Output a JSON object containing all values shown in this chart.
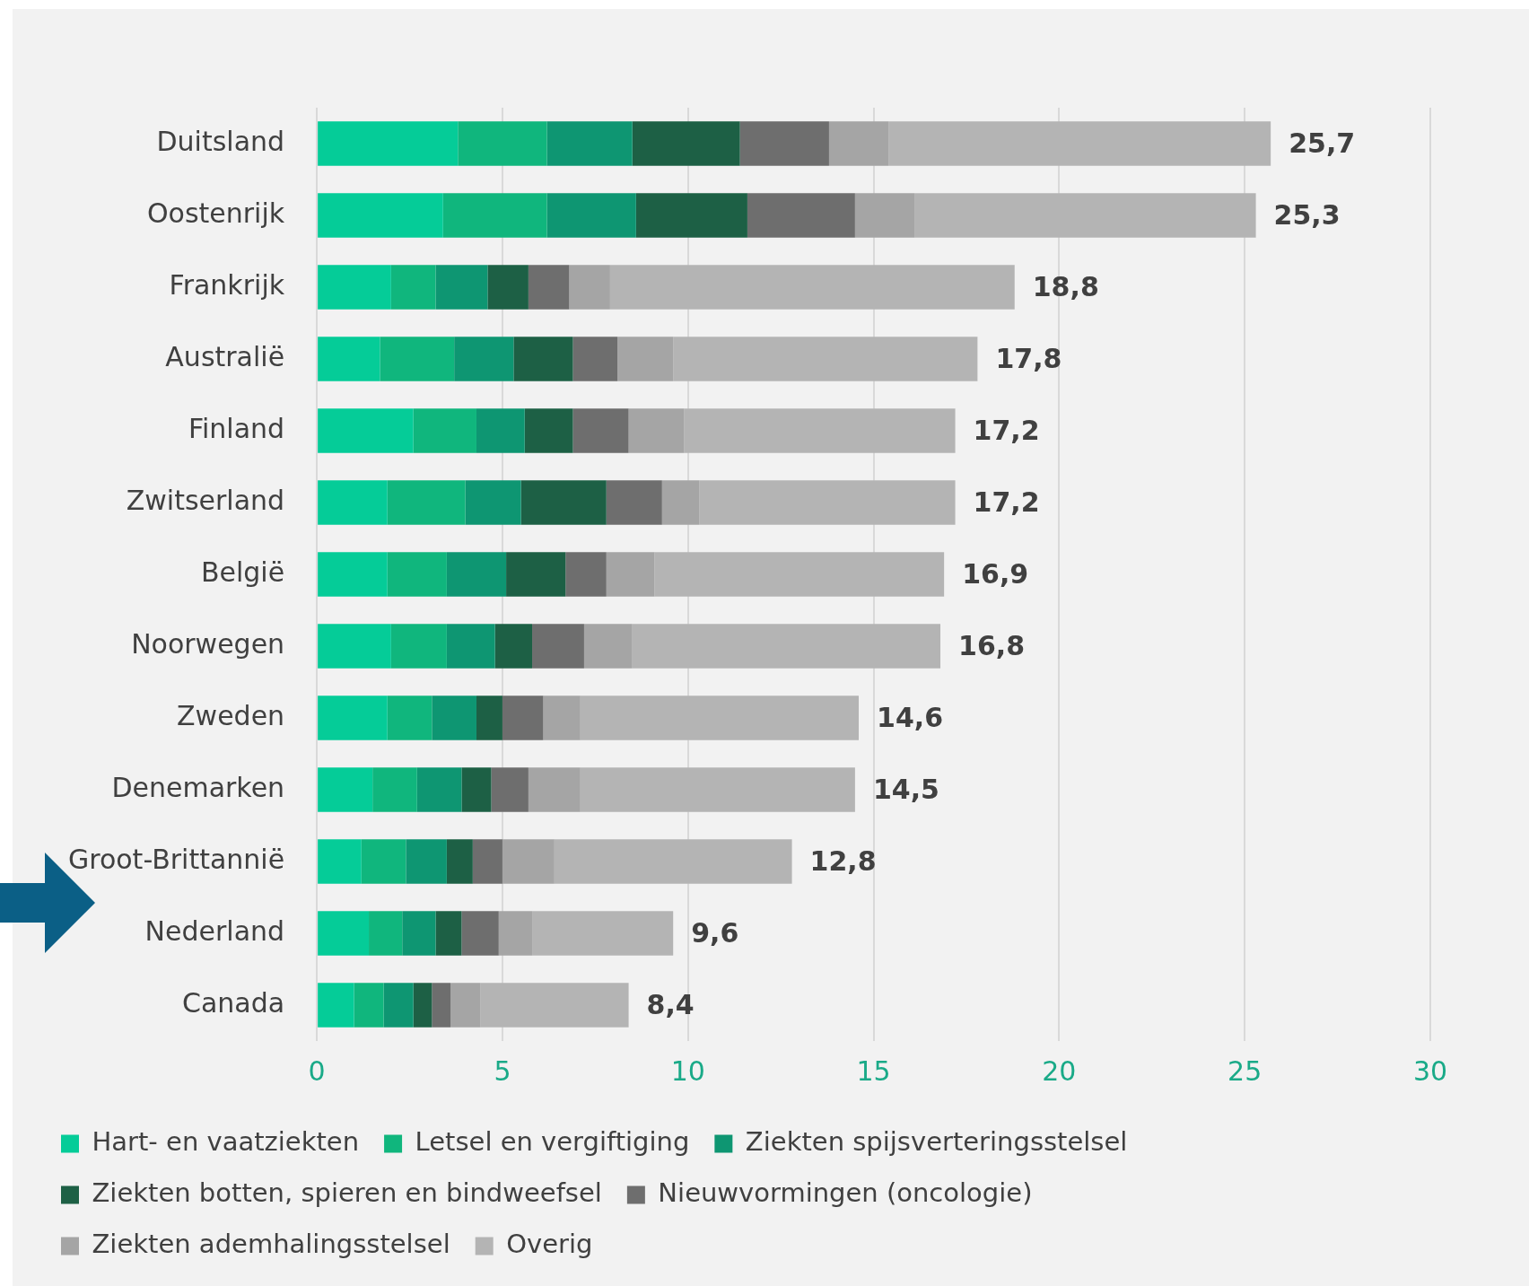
{
  "chart_data": {
    "type": "bar",
    "orientation": "horizontal",
    "stacked": true,
    "categories": [
      "Duitsland",
      "Oostenrijk",
      "Frankrijk",
      "Australië",
      "Finland",
      "Zwitserland",
      "België",
      "Noorwegen",
      "Zweden",
      "Denemarken",
      "Groot-Brittannië",
      "Nederland",
      "Canada"
    ],
    "series": [
      {
        "name": "Hart- en vaatziekten",
        "color": "#05cc98",
        "values": [
          3.8,
          3.4,
          2.0,
          1.7,
          2.6,
          1.9,
          1.9,
          2.0,
          1.9,
          1.5,
          1.2,
          1.4,
          1.0
        ]
      },
      {
        "name": "Letsel en vergiftiging",
        "color": "#10b67d",
        "values": [
          2.4,
          2.8,
          1.2,
          2.0,
          1.7,
          2.1,
          1.6,
          1.5,
          1.2,
          1.2,
          1.2,
          0.9,
          0.8
        ]
      },
      {
        "name": "Ziekten spijsverteringsstelsel",
        "color": "#0e9672",
        "values": [
          2.3,
          2.4,
          1.4,
          1.6,
          1.3,
          1.5,
          1.6,
          1.3,
          1.2,
          1.2,
          1.1,
          0.9,
          0.8
        ]
      },
      {
        "name": "Ziekten botten, spieren en bindweefsel",
        "color": "#1d6045",
        "values": [
          2.9,
          3.0,
          1.1,
          1.6,
          1.3,
          2.3,
          1.6,
          1.0,
          0.7,
          0.8,
          0.7,
          0.7,
          0.5
        ]
      },
      {
        "name": "Nieuwvormingen (oncologie)",
        "color": "#6e6e6e",
        "values": [
          2.4,
          2.9,
          1.1,
          1.2,
          1.5,
          1.5,
          1.1,
          1.4,
          1.1,
          1.0,
          0.8,
          1.0,
          0.5
        ]
      },
      {
        "name": "Ziekten ademhalingsstelsel",
        "color": "#a5a5a5",
        "values": [
          1.6,
          1.6,
          1.1,
          1.5,
          1.5,
          1.0,
          1.3,
          1.3,
          1.0,
          1.4,
          1.4,
          0.9,
          0.8
        ]
      },
      {
        "name": "Overig",
        "color": "#b4b4b4",
        "values": [
          10.3,
          9.2,
          10.9,
          8.2,
          7.3,
          6.9,
          7.8,
          8.3,
          7.5,
          7.4,
          6.4,
          3.8,
          4.0
        ]
      }
    ],
    "totals": [
      "25,7",
      "25,3",
      "18,8",
      "17,8",
      "17,2",
      "17,2",
      "16,9",
      "16,8",
      "14,6",
      "14,5",
      "12,8",
      "9,6",
      "8,4"
    ],
    "xlim": [
      0,
      30
    ],
    "xticks": [
      0,
      5,
      10,
      15,
      20,
      25,
      30
    ],
    "grid": "x",
    "legend": "bottom"
  }
}
